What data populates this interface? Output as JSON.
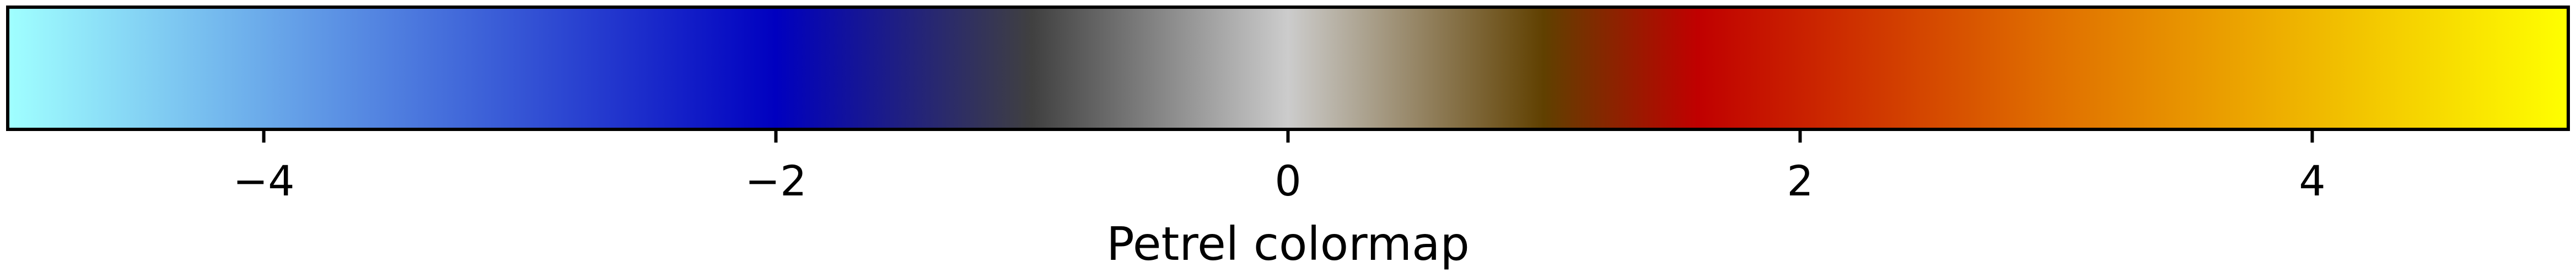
{
  "chart_data": {
    "type": "colorbar",
    "orientation": "horizontal",
    "xlabel": "Petrel colormap",
    "xlim": [
      -5,
      5
    ],
    "ticks": [
      -4,
      -2,
      0,
      2,
      4
    ],
    "tick_labels": [
      "−4",
      "−2",
      "0",
      "2",
      "4"
    ],
    "color_stops": [
      {
        "value": -5.0,
        "color": "#a0ffff"
      },
      {
        "value": -2.0,
        "color": "#0000c0"
      },
      {
        "value": -1.0,
        "color": "#404040"
      },
      {
        "value": 0.0,
        "color": "#cccccc"
      },
      {
        "value": 1.0,
        "color": "#604000"
      },
      {
        "value": 1.6,
        "color": "#c00000"
      },
      {
        "value": 3.0,
        "color": "#e07000"
      },
      {
        "value": 5.0,
        "color": "#ffff00"
      }
    ],
    "grid": false
  }
}
